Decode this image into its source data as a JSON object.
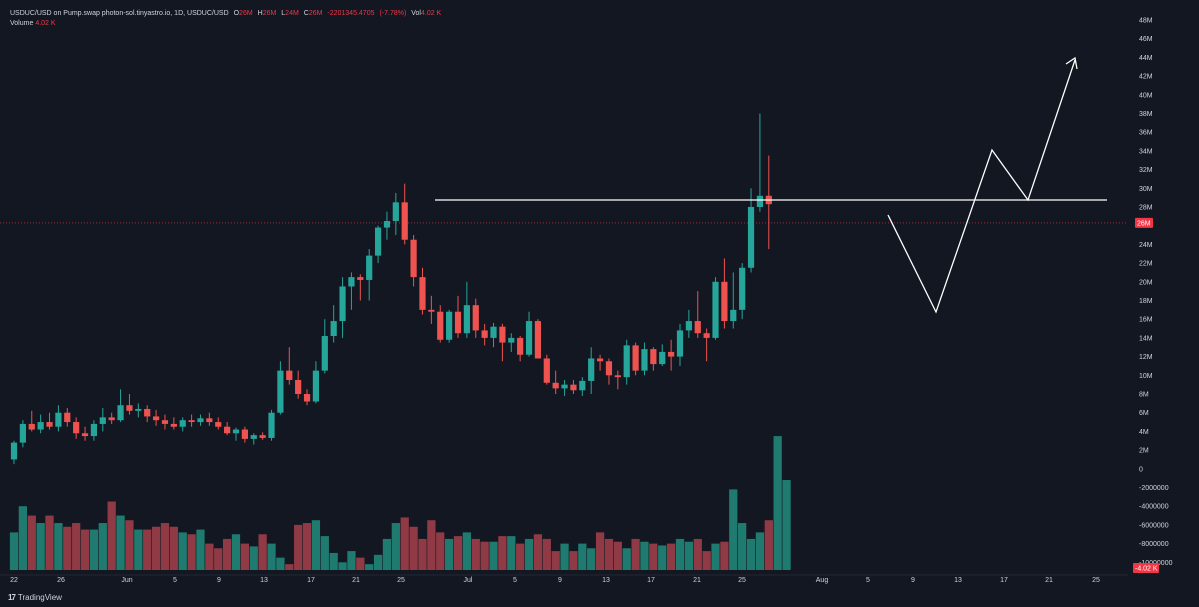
{
  "legend": {
    "symbol": "USDUC/USD on Pump.swap photon-sol.tinyastro.io, 1D, USDUC/USD",
    "o_label": "O",
    "o_value": "26M",
    "h_label": "H",
    "h_value": "26M",
    "l_label": "L",
    "l_value": "24M",
    "c_label": "C",
    "c_value": "26M",
    "change": "-2201345.4705",
    "change_pct": "(-7.78%)",
    "vol_label": "Vol",
    "vol_value": "4.02 K"
  },
  "volume_legend": {
    "label": "Volume",
    "value": "4.02 K"
  },
  "brand": {
    "icon": "tradingview-logo-icon",
    "name": "TradingView"
  },
  "colors": {
    "background": "#131722",
    "up": "#26a69a",
    "down": "#ef5350",
    "grid": "#1e222d",
    "text": "#d1d4dc",
    "drawing": "#ffffff",
    "price_tag": "#f23645"
  },
  "chart_data": {
    "type": "candlestick",
    "price_axis_ticks": [
      "48M",
      "46M",
      "44M",
      "42M",
      "40M",
      "38M",
      "36M",
      "34M",
      "32M",
      "30M",
      "28M",
      "26M",
      "24M",
      "22M",
      "20M",
      "18M",
      "16M",
      "14M",
      "12M",
      "10M",
      "8M",
      "6M",
      "4M",
      "2M",
      "0",
      "-2000000",
      "-4000000",
      "-6000000",
      "-8000000",
      "-10000000"
    ],
    "price_range": [
      -11,
      49
    ],
    "time_axis_ticks": [
      "22",
      "26",
      "Jun",
      "5",
      "9",
      "13",
      "17",
      "21",
      "25",
      "Jul",
      "5",
      "9",
      "13",
      "17",
      "21",
      "25",
      "Aug",
      "5",
      "9",
      "13",
      "17",
      "21",
      "25"
    ],
    "last_price_label": "26M",
    "last_volume_label": "-4.02 K",
    "candles": [
      {
        "o": 1.0,
        "h": 3.0,
        "l": 0.5,
        "c": 2.8
      },
      {
        "o": 2.8,
        "h": 5.2,
        "l": 2.3,
        "c": 4.8
      },
      {
        "o": 4.8,
        "h": 6.2,
        "l": 4.0,
        "c": 4.2
      },
      {
        "o": 4.2,
        "h": 5.8,
        "l": 3.8,
        "c": 5.0
      },
      {
        "o": 5.0,
        "h": 6.0,
        "l": 4.2,
        "c": 4.5
      },
      {
        "o": 4.5,
        "h": 6.8,
        "l": 4.0,
        "c": 6.0
      },
      {
        "o": 6.0,
        "h": 6.5,
        "l": 4.5,
        "c": 5.0
      },
      {
        "o": 5.0,
        "h": 5.5,
        "l": 3.2,
        "c": 3.8
      },
      {
        "o": 3.8,
        "h": 4.5,
        "l": 3.0,
        "c": 3.5
      },
      {
        "o": 3.5,
        "h": 5.2,
        "l": 3.0,
        "c": 4.8
      },
      {
        "o": 4.8,
        "h": 6.5,
        "l": 4.0,
        "c": 5.5
      },
      {
        "o": 5.5,
        "h": 6.0,
        "l": 4.8,
        "c": 5.2
      },
      {
        "o": 5.2,
        "h": 8.5,
        "l": 5.0,
        "c": 6.8
      },
      {
        "o": 6.8,
        "h": 8.0,
        "l": 5.8,
        "c": 6.2
      },
      {
        "o": 6.2,
        "h": 7.0,
        "l": 5.5,
        "c": 6.4
      },
      {
        "o": 6.4,
        "h": 6.8,
        "l": 5.0,
        "c": 5.6
      },
      {
        "o": 5.6,
        "h": 6.3,
        "l": 4.6,
        "c": 5.2
      },
      {
        "o": 5.2,
        "h": 5.8,
        "l": 4.2,
        "c": 4.8
      },
      {
        "o": 4.8,
        "h": 5.5,
        "l": 4.2,
        "c": 4.5
      },
      {
        "o": 4.5,
        "h": 5.5,
        "l": 4.0,
        "c": 5.2
      },
      {
        "o": 5.2,
        "h": 5.8,
        "l": 4.5,
        "c": 5.0
      },
      {
        "o": 5.0,
        "h": 5.8,
        "l": 4.6,
        "c": 5.4
      },
      {
        "o": 5.4,
        "h": 6.0,
        "l": 4.6,
        "c": 5.0
      },
      {
        "o": 5.0,
        "h": 5.5,
        "l": 4.2,
        "c": 4.5
      },
      {
        "o": 4.5,
        "h": 5.0,
        "l": 3.6,
        "c": 3.8
      },
      {
        "o": 3.8,
        "h": 4.4,
        "l": 3.0,
        "c": 4.2
      },
      {
        "o": 4.2,
        "h": 4.5,
        "l": 2.8,
        "c": 3.2
      },
      {
        "o": 3.2,
        "h": 3.8,
        "l": 2.6,
        "c": 3.6
      },
      {
        "o": 3.6,
        "h": 3.9,
        "l": 3.1,
        "c": 3.3
      },
      {
        "o": 3.3,
        "h": 6.3,
        "l": 3.0,
        "c": 6.0
      },
      {
        "o": 6.0,
        "h": 11.5,
        "l": 5.8,
        "c": 10.5
      },
      {
        "o": 10.5,
        "h": 13.0,
        "l": 9.0,
        "c": 9.5
      },
      {
        "o": 9.5,
        "h": 10.5,
        "l": 7.5,
        "c": 8.0
      },
      {
        "o": 8.0,
        "h": 8.5,
        "l": 6.8,
        "c": 7.2
      },
      {
        "o": 7.2,
        "h": 11.5,
        "l": 7.0,
        "c": 10.5
      },
      {
        "o": 10.5,
        "h": 16.0,
        "l": 10.2,
        "c": 14.2
      },
      {
        "o": 14.2,
        "h": 17.5,
        "l": 13.5,
        "c": 15.8
      },
      {
        "o": 15.8,
        "h": 20.5,
        "l": 14.0,
        "c": 19.5
      },
      {
        "o": 19.5,
        "h": 21.0,
        "l": 17.0,
        "c": 20.5
      },
      {
        "o": 20.5,
        "h": 20.8,
        "l": 18.0,
        "c": 20.2
      },
      {
        "o": 20.2,
        "h": 23.5,
        "l": 18.0,
        "c": 22.8
      },
      {
        "o": 22.8,
        "h": 26.0,
        "l": 22.0,
        "c": 25.8
      },
      {
        "o": 25.8,
        "h": 27.5,
        "l": 24.5,
        "c": 26.5
      },
      {
        "o": 26.5,
        "h": 29.5,
        "l": 25.0,
        "c": 28.5
      },
      {
        "o": 28.5,
        "h": 30.5,
        "l": 24.0,
        "c": 24.5
      },
      {
        "o": 24.5,
        "h": 25.0,
        "l": 19.5,
        "c": 20.5
      },
      {
        "o": 20.5,
        "h": 21.5,
        "l": 16.5,
        "c": 17.0
      },
      {
        "o": 17.0,
        "h": 18.5,
        "l": 15.5,
        "c": 16.8
      },
      {
        "o": 16.8,
        "h": 17.5,
        "l": 13.5,
        "c": 13.8
      },
      {
        "o": 13.8,
        "h": 17.0,
        "l": 13.5,
        "c": 16.8
      },
      {
        "o": 16.8,
        "h": 18.5,
        "l": 14.0,
        "c": 14.5
      },
      {
        "o": 14.5,
        "h": 20.0,
        "l": 14.0,
        "c": 17.5
      },
      {
        "o": 17.5,
        "h": 18.2,
        "l": 14.0,
        "c": 14.8
      },
      {
        "o": 14.8,
        "h": 15.5,
        "l": 13.2,
        "c": 14.0
      },
      {
        "o": 14.0,
        "h": 15.6,
        "l": 13.0,
        "c": 15.2
      },
      {
        "o": 15.2,
        "h": 15.5,
        "l": 11.5,
        "c": 13.5
      },
      {
        "o": 13.5,
        "h": 14.5,
        "l": 12.5,
        "c": 14.0
      },
      {
        "o": 14.0,
        "h": 14.2,
        "l": 11.5,
        "c": 12.2
      },
      {
        "o": 12.2,
        "h": 16.8,
        "l": 12.0,
        "c": 15.8
      },
      {
        "o": 15.8,
        "h": 16.0,
        "l": 11.8,
        "c": 11.8
      },
      {
        "o": 11.8,
        "h": 12.2,
        "l": 9.0,
        "c": 9.2
      },
      {
        "o": 9.2,
        "h": 10.5,
        "l": 8.0,
        "c": 8.6
      },
      {
        "o": 8.6,
        "h": 9.5,
        "l": 7.8,
        "c": 9.0
      },
      {
        "o": 9.0,
        "h": 9.5,
        "l": 8.0,
        "c": 8.4
      },
      {
        "o": 8.4,
        "h": 9.8,
        "l": 7.8,
        "c": 9.4
      },
      {
        "o": 9.4,
        "h": 13.0,
        "l": 8.0,
        "c": 11.8
      },
      {
        "o": 11.8,
        "h": 12.2,
        "l": 10.5,
        "c": 11.5
      },
      {
        "o": 11.5,
        "h": 11.8,
        "l": 9.0,
        "c": 10.0
      },
      {
        "o": 10.0,
        "h": 10.5,
        "l": 8.5,
        "c": 9.8
      },
      {
        "o": 9.8,
        "h": 13.8,
        "l": 9.0,
        "c": 13.2
      },
      {
        "o": 13.2,
        "h": 13.5,
        "l": 10.0,
        "c": 10.5
      },
      {
        "o": 10.5,
        "h": 13.5,
        "l": 10.0,
        "c": 12.8
      },
      {
        "o": 12.8,
        "h": 13.0,
        "l": 10.5,
        "c": 11.2
      },
      {
        "o": 11.2,
        "h": 13.3,
        "l": 11.0,
        "c": 12.5
      },
      {
        "o": 12.5,
        "h": 13.8,
        "l": 10.5,
        "c": 12.0
      },
      {
        "o": 12.0,
        "h": 15.5,
        "l": 11.0,
        "c": 14.8
      },
      {
        "o": 14.8,
        "h": 17.0,
        "l": 14.0,
        "c": 15.8
      },
      {
        "o": 15.8,
        "h": 19.0,
        "l": 14.0,
        "c": 14.5
      },
      {
        "o": 14.5,
        "h": 15.0,
        "l": 11.5,
        "c": 14.0
      },
      {
        "o": 14.0,
        "h": 20.5,
        "l": 13.8,
        "c": 20.0
      },
      {
        "o": 20.0,
        "h": 22.5,
        "l": 15.0,
        "c": 15.8
      },
      {
        "o": 15.8,
        "h": 21.0,
        "l": 15.0,
        "c": 17.0
      },
      {
        "o": 17.0,
        "h": 22.0,
        "l": 16.0,
        "c": 21.5
      },
      {
        "o": 21.5,
        "h": 30.0,
        "l": 21.0,
        "c": 28.0
      },
      {
        "o": 28.0,
        "h": 38.0,
        "l": 27.5,
        "c": 29.2
      },
      {
        "o": 29.2,
        "h": 33.5,
        "l": 23.5,
        "c": 28.3
      }
    ],
    "volumes": [
      -6.8,
      -4.0,
      -5.0,
      -5.8,
      -5.0,
      -5.8,
      -6.2,
      -5.8,
      -6.5,
      -6.5,
      -5.8,
      -3.5,
      -5.0,
      -5.5,
      -6.5,
      -6.5,
      -6.2,
      -5.8,
      -6.2,
      -6.8,
      -7.0,
      -6.5,
      -8.0,
      -8.5,
      -7.5,
      -7.0,
      -8.0,
      -8.3,
      -7.0,
      -8.0,
      -9.5,
      -10.2,
      -6.0,
      -5.8,
      -5.5,
      -7.2,
      -9.0,
      -10.0,
      -8.8,
      -9.5,
      -10.2,
      -9.2,
      -7.5,
      -5.8,
      -5.2,
      -6.2,
      -7.5,
      -5.5,
      -6.8,
      -7.5,
      -7.2,
      -6.8,
      -7.5,
      -7.8,
      -7.8,
      -7.2,
      -7.2,
      -8.0,
      -7.5,
      -7.0,
      -7.5,
      -8.8,
      -8.0,
      -8.8,
      -8.0,
      -8.5,
      -6.8,
      -7.5,
      -7.8,
      -8.5,
      -7.5,
      -7.8,
      -8.0,
      -8.2,
      -8.0,
      -7.5,
      -7.8,
      -7.5,
      -8.8,
      -8.0,
      -7.8,
      -2.2,
      -5.8,
      -7.5,
      -6.8,
      -5.5,
      3.5,
      -1.2
    ]
  }
}
